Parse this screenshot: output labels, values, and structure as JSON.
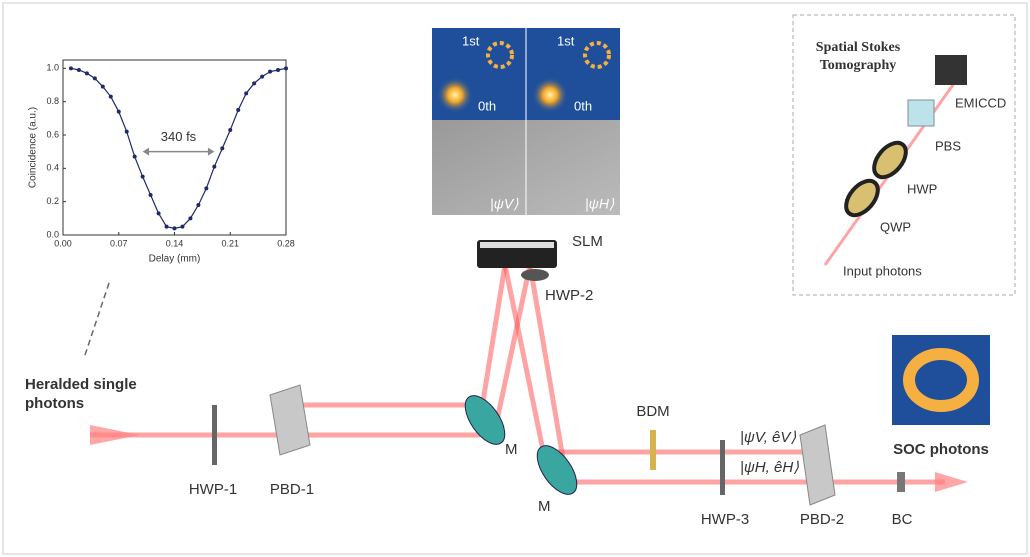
{
  "chart_data": {
    "type": "line",
    "x_label": "Delay (mm)",
    "y_label": "Coincidence (a.u.)",
    "annotation": "340 fs",
    "x": [
      0.01,
      0.02,
      0.03,
      0.04,
      0.05,
      0.06,
      0.07,
      0.08,
      0.09,
      0.1,
      0.11,
      0.12,
      0.13,
      0.14,
      0.15,
      0.16,
      0.17,
      0.18,
      0.19,
      0.2,
      0.21,
      0.22,
      0.23,
      0.24,
      0.25,
      0.26,
      0.27,
      0.28
    ],
    "values": [
      1.0,
      0.99,
      0.97,
      0.94,
      0.89,
      0.83,
      0.74,
      0.62,
      0.47,
      0.35,
      0.24,
      0.13,
      0.05,
      0.04,
      0.05,
      0.1,
      0.18,
      0.28,
      0.41,
      0.52,
      0.63,
      0.75,
      0.85,
      0.91,
      0.95,
      0.98,
      0.99,
      1.0
    ],
    "color": "#1f2a6b",
    "xlim": [
      0,
      0.28
    ],
    "ylim": [
      0,
      1.05
    ],
    "xticks": [
      {
        "value": 0,
        "label": "0.00"
      },
      0.07,
      0.14,
      0.21,
      0.28
    ],
    "yticks": [
      {
        "value": 0,
        "label": "0.0"
      },
      0.2,
      0.4,
      0.6,
      0.8,
      {
        "value": 1,
        "label": "1.0"
      }
    ]
  },
  "source": {
    "line1": "Heralded single",
    "line2": "photons"
  },
  "components": {
    "hwp1": "HWP-1",
    "pbd1": "PBD-1",
    "m1": "M",
    "m2": "M",
    "slm": "SLM",
    "hwp2": "HWP-2",
    "bdm": "BDM",
    "hwp3": "HWP-3",
    "pbd2": "PBD-2",
    "bc": "BC"
  },
  "states": {
    "upper": "|ψV, êV⟩",
    "lower": "|ψH, êH⟩"
  },
  "output": "SOC photons",
  "hologram": {
    "first_left": "1st",
    "zeroth_left": "0th",
    "first_right": "1st",
    "zeroth_right": "0th",
    "psi_v": "|ψV⟩",
    "psi_h": "|ψH⟩"
  },
  "tomography": {
    "title1": "Spatial Stokes",
    "title2": "Tomography",
    "camera": "EMICCD",
    "pbs": "PBS",
    "hwp": "HWP",
    "qwp": "QWP",
    "input": "Input photons"
  }
}
